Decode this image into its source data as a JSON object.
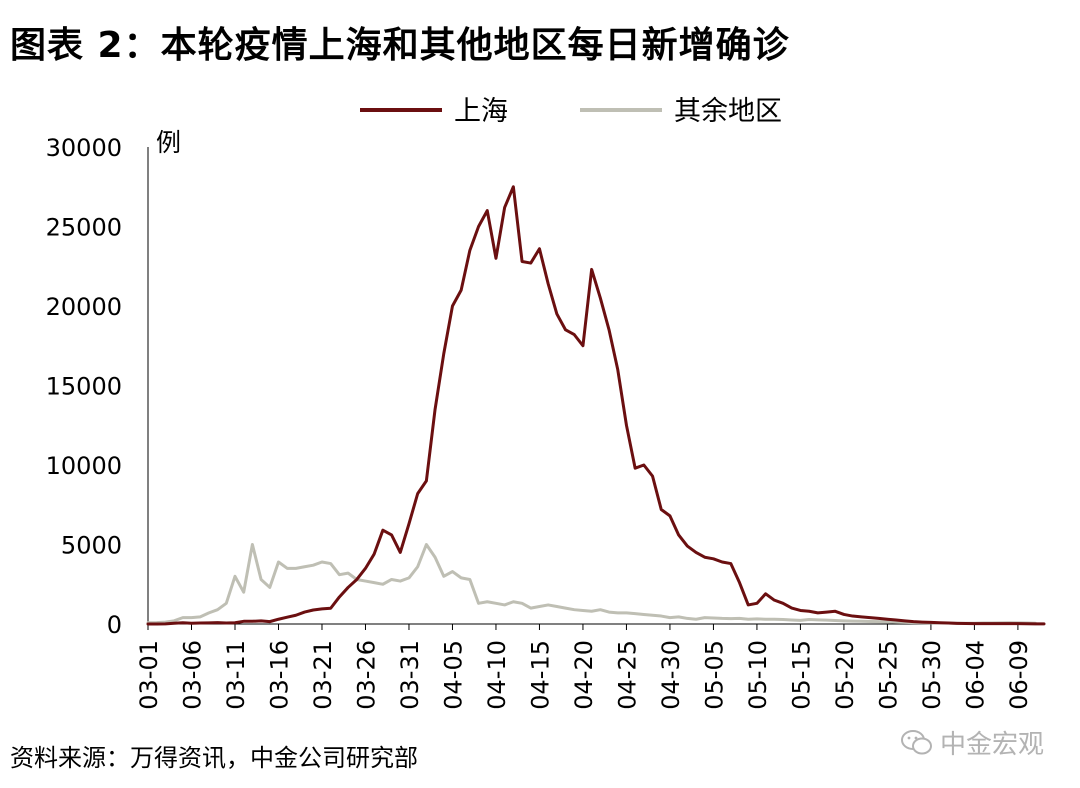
{
  "figure": {
    "title": "图表 2：本轮疫情上海和其他地区每日新增确诊",
    "source": "资料来源：万得资讯，中金公司研究部",
    "watermark": "中金宏观"
  },
  "chart_data": {
    "type": "line",
    "title": "图表 2：本轮疫情上海和其他地区每日新增确诊",
    "xlabel": "",
    "ylabel": "例",
    "ylim": [
      0,
      30000
    ],
    "yticks": [
      0,
      5000,
      10000,
      15000,
      20000,
      25000,
      30000
    ],
    "x_start": "2022-03-01",
    "x_tick_labels": [
      "03-01",
      "03-06",
      "03-11",
      "03-16",
      "03-21",
      "03-26",
      "03-31",
      "04-05",
      "04-10",
      "04-15",
      "04-20",
      "04-25",
      "04-30",
      "05-05",
      "05-10",
      "05-15",
      "05-20",
      "05-25",
      "05-30",
      "06-04",
      "06-09"
    ],
    "grid": false,
    "legend_position": "top-center",
    "series": [
      {
        "name": "上海",
        "color": "#6b0f10",
        "values": [
          2,
          4,
          8,
          50,
          80,
          45,
          60,
          70,
          90,
          60,
          80,
          170,
          170,
          200,
          150,
          300,
          430,
          550,
          750,
          880,
          950,
          990,
          1700,
          2300,
          2800,
          3500,
          4400,
          5900,
          5600,
          4500,
          6300,
          8200,
          9000,
          13500,
          17000,
          20000,
          21000,
          23500,
          25000,
          26000,
          23000,
          26200,
          27500,
          22800,
          22700,
          23600,
          21400,
          19500,
          18500,
          18200,
          17500,
          22300,
          20500,
          18500,
          16000,
          12500,
          9800,
          10000,
          9300,
          7200,
          6800,
          5600,
          4900,
          4500,
          4200,
          4100,
          3900,
          3800,
          2600,
          1200,
          1300,
          1900,
          1500,
          1300,
          1000,
          850,
          800,
          700,
          750,
          800,
          600,
          500,
          450,
          400,
          350,
          300,
          250,
          200,
          150,
          120,
          100,
          80,
          60,
          40,
          30,
          20,
          20,
          20,
          20,
          20,
          20,
          15,
          10,
          10
        ]
      },
      {
        "name": "其余地区",
        "color": "#bfbfb4",
        "values": [
          80,
          90,
          120,
          200,
          400,
          400,
          450,
          700,
          900,
          1300,
          3000,
          2000,
          5000,
          2800,
          2300,
          3900,
          3500,
          3500,
          3600,
          3700,
          3900,
          3800,
          3100,
          3200,
          2800,
          2700,
          2600,
          2500,
          2800,
          2700,
          2900,
          3600,
          5000,
          4200,
          3000,
          3300,
          2900,
          2800,
          1300,
          1400,
          1300,
          1200,
          1400,
          1300,
          1000,
          1100,
          1200,
          1100,
          1000,
          900,
          850,
          800,
          900,
          750,
          700,
          700,
          650,
          600,
          550,
          500,
          400,
          450,
          350,
          300,
          400,
          380,
          350,
          340,
          350,
          300,
          320,
          300,
          300,
          280,
          250,
          230,
          280,
          260,
          240,
          220,
          200,
          180,
          170,
          160,
          150,
          140,
          120,
          100,
          90,
          80,
          70,
          60,
          60,
          50,
          50,
          50,
          60,
          60,
          70,
          80,
          70,
          60,
          50
        ]
      }
    ]
  }
}
